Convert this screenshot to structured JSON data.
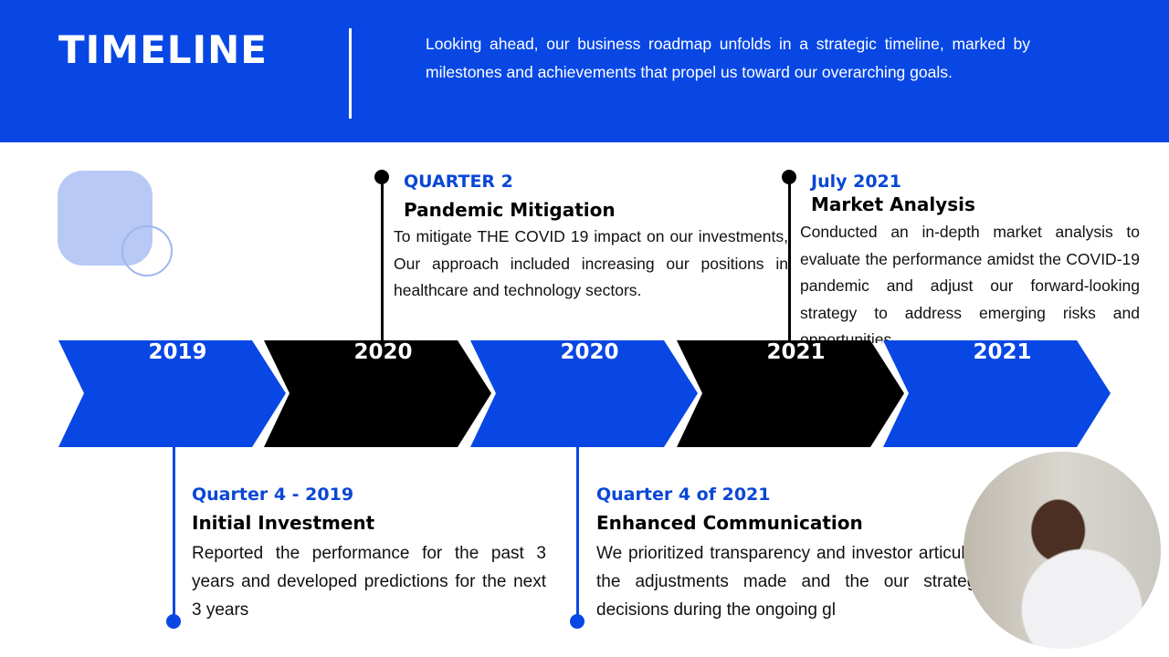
{
  "header": {
    "title": "TIMELINE",
    "intro": "Looking ahead, our business roadmap unfolds in a strategic timeline, marked by milestones and achievements that propel us toward our overarching goals."
  },
  "colors": {
    "brand_blue": "#0847e4",
    "black": "#000000"
  },
  "chevrons": [
    {
      "label": "2019",
      "color": "#0847e4"
    },
    {
      "label": "2020",
      "color": "#000000"
    },
    {
      "label": "2020",
      "color": "#0847e4"
    },
    {
      "label": "2021",
      "color": "#000000"
    },
    {
      "label": "2021",
      "color": "#0847e4"
    }
  ],
  "milestones": [
    {
      "period": "QUARTER 2",
      "title": "Pandemic Mitigation",
      "text": "To mitigate THE COVID 19 impact on our investments, Our approach included increasing our positions in healthcare and technology sectors."
    },
    {
      "period": "July 2021",
      "title": "Market Analysis",
      "text": "Conducted an in-depth market analysis to evaluate the performance amidst the COVID-19 pandemic and adjust our forward-looking strategy to address emerging risks and opportunities."
    },
    {
      "period": "Quarter 4 - 2019",
      "title": "Initial Investment",
      "text": "Reported the performance for the past 3 years and developed predictions for the next 3 years"
    },
    {
      "period": "Quarter 4 of 2021",
      "title": "Enhanced Communication",
      "text": "We prioritized transparency and investor articulate the adjustments made and the our strategic decisions during the ongoing gl"
    }
  ]
}
